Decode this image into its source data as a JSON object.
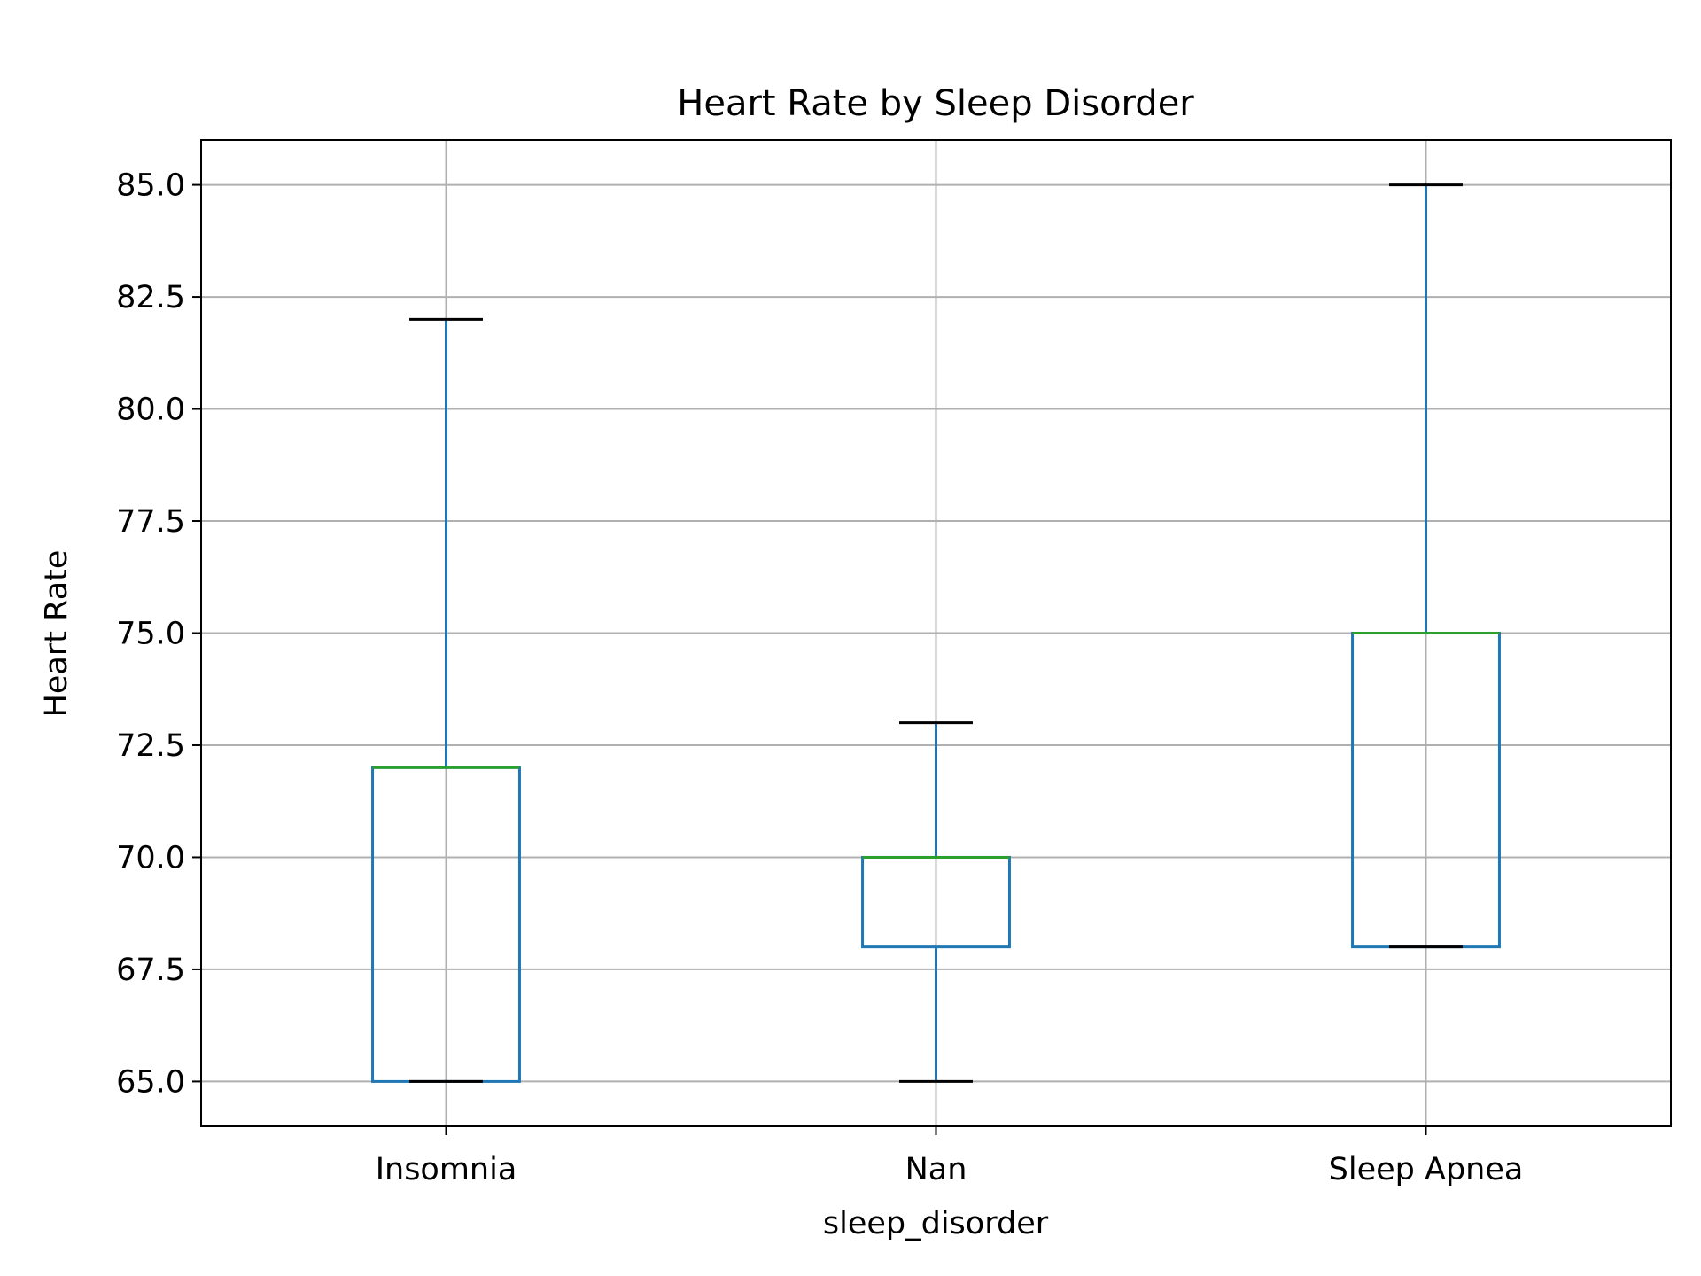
{
  "chart_data": {
    "type": "box",
    "title": "Heart Rate by Sleep Disorder",
    "xlabel": "sleep_disorder",
    "ylabel": "Heart Rate",
    "ylim": [
      64.0,
      86.0
    ],
    "yticks": [
      65.0,
      67.5,
      70.0,
      72.5,
      75.0,
      77.5,
      80.0,
      82.5,
      85.0
    ],
    "grid": true,
    "categories": [
      "Insomnia",
      "Nan",
      "Sleep Apnea"
    ],
    "boxes": [
      {
        "category": "Insomnia",
        "whisker_low": 65.0,
        "q1": 65.0,
        "median": 72.0,
        "q3": 72.0,
        "whisker_high": 82.0
      },
      {
        "category": "Nan",
        "whisker_low": 65.0,
        "q1": 68.0,
        "median": 70.0,
        "q3": 70.0,
        "whisker_high": 73.0
      },
      {
        "category": "Sleep Apnea",
        "whisker_low": 68.0,
        "q1": 68.0,
        "median": 75.0,
        "q3": 75.0,
        "whisker_high": 85.0
      }
    ],
    "colors": {
      "box": "#1f77b4",
      "median": "#2ca02c",
      "cap": "#000000",
      "grid": "#b0b0b0",
      "axes": "#000000"
    }
  }
}
